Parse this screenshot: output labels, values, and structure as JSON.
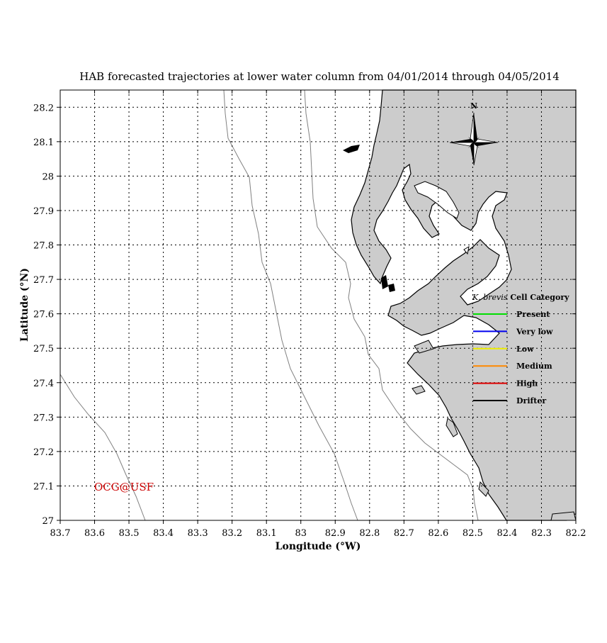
{
  "title": "HAB forecasted trajectories at lower water column from 04/01/2014 through 04/05/2014",
  "xlabel": "Longitude (°W)",
  "ylabel": "Latitude (°N)",
  "x_ticks": [
    "83.7",
    "83.6",
    "83.5",
    "83.4",
    "83.3",
    "83.2",
    "83.1",
    "83",
    "82.9",
    "82.8",
    "82.7",
    "82.6",
    "82.5",
    "82.4",
    "82.3",
    "82.2"
  ],
  "x_tick_values": [
    83.7,
    83.6,
    83.5,
    83.4,
    83.3,
    83.2,
    83.1,
    83.0,
    82.9,
    82.8,
    82.7,
    82.6,
    82.5,
    82.4,
    82.3,
    82.2
  ],
  "y_ticks": [
    "28.2",
    "28.1",
    "28",
    "27.9",
    "27.8",
    "27.7",
    "27.6",
    "27.5",
    "27.4",
    "27.3",
    "27.2",
    "27.1",
    "27"
  ],
  "y_tick_values": [
    28.2,
    28.1,
    28.0,
    27.9,
    27.8,
    27.7,
    27.6,
    27.5,
    27.4,
    27.3,
    27.2,
    27.1,
    27.0
  ],
  "x_range": [
    83.7,
    82.2
  ],
  "y_range": [
    27.0,
    28.25
  ],
  "grid": true,
  "compass_label": "N",
  "legend": {
    "title_italic": "K. brevis",
    "title_rest": "Cell Category",
    "placement": "right-middle",
    "entries": [
      {
        "label": "Present",
        "color": "#00dd00"
      },
      {
        "label": "Very low",
        "color": "#0000ee"
      },
      {
        "label": "Low",
        "color": "#eeee00"
      },
      {
        "label": "Medium",
        "color": "#ff8800"
      },
      {
        "label": "High",
        "color": "#dd0000"
      },
      {
        "label": "Drifter",
        "color": "#000000"
      }
    ]
  },
  "credit": "OCG@USF",
  "colors": {
    "land": "#cccccc",
    "water": "#ffffff",
    "isobath": "#808080",
    "coast": "#000000",
    "credit": "#cc0000"
  }
}
